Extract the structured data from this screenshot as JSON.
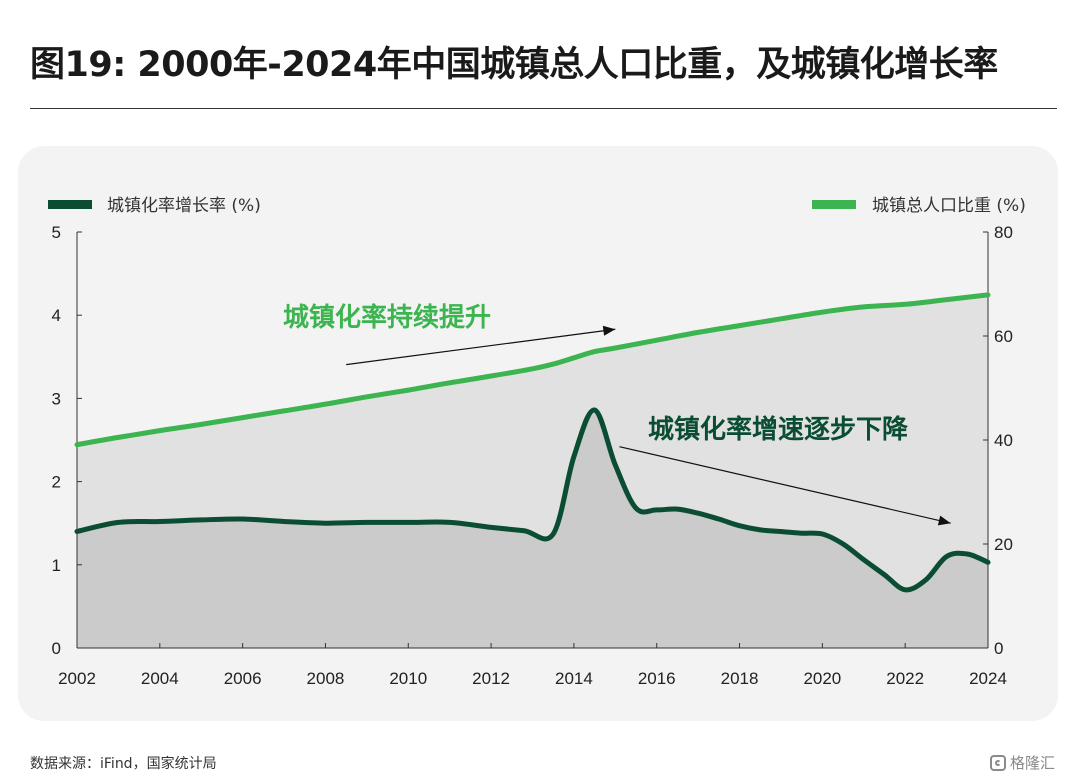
{
  "title": "图19: 2000年-2024年中国城镇总人口比重，及城镇化增长率",
  "source": "数据来源：iFind，国家统计局",
  "watermark": "格隆汇",
  "colors": {
    "growth_line": "#0a4d33",
    "share_line": "#3cb44f",
    "share_area": "#e1e1e1",
    "growth_area": "#cbcbcb",
    "annotation_up": "#3cb44f",
    "annotation_down": "#0a4d33"
  },
  "chart_data": {
    "type": "line",
    "legend": [
      {
        "name": "城镇化率增长率 (%)",
        "position": "top-left",
        "axis": "left"
      },
      {
        "name": "城镇总人口比重 (%)",
        "position": "top-right",
        "axis": "right"
      }
    ],
    "x_ticks": [
      "2002",
      "2004",
      "2006",
      "2008",
      "2010",
      "2012",
      "2014",
      "2016",
      "2018",
      "2020",
      "2022",
      "2024"
    ],
    "xlim": [
      2002,
      2024
    ],
    "y_left": {
      "lim": [
        0,
        5
      ],
      "ticks": [
        "0",
        "1",
        "2",
        "3",
        "4",
        "5"
      ]
    },
    "y_right": {
      "lim": [
        0,
        80
      ],
      "ticks": [
        "0",
        "20",
        "40",
        "60",
        "80"
      ]
    },
    "series": [
      {
        "name": "城镇化率增长率 (%)",
        "axis": "left",
        "x": [
          2002,
          2003,
          2004,
          2005,
          2006,
          2007,
          2008,
          2009,
          2010,
          2011,
          2012,
          2012.8,
          2013.5,
          2014,
          2014.5,
          2015,
          2015.5,
          2016,
          2016.5,
          2017,
          2017.5,
          2018,
          2018.5,
          2019,
          2019.5,
          2020,
          2020.5,
          2021,
          2021.5,
          2022,
          2022.5,
          2023,
          2023.5,
          2024
        ],
        "values": [
          1.4,
          1.51,
          1.52,
          1.54,
          1.55,
          1.52,
          1.5,
          1.51,
          1.51,
          1.51,
          1.45,
          1.41,
          1.37,
          2.3,
          2.86,
          2.2,
          1.68,
          1.66,
          1.67,
          1.62,
          1.55,
          1.47,
          1.42,
          1.4,
          1.38,
          1.37,
          1.25,
          1.06,
          0.88,
          0.7,
          0.82,
          1.1,
          1.13,
          1.03
        ]
      },
      {
        "name": "城镇总人口比重 (%)",
        "axis": "right",
        "x": [
          2002,
          2003,
          2004,
          2005,
          2006,
          2007,
          2008,
          2009,
          2010,
          2011,
          2012,
          2013,
          2013.5,
          2014,
          2014.5,
          2015,
          2016,
          2017,
          2018,
          2019,
          2020,
          2021,
          2022,
          2023,
          2024
        ],
        "values": [
          39.1,
          40.5,
          41.8,
          43.0,
          44.3,
          45.6,
          46.9,
          48.3,
          49.6,
          51.0,
          52.3,
          53.7,
          54.6,
          55.8,
          57.0,
          57.7,
          59.2,
          60.7,
          62.0,
          63.3,
          64.6,
          65.6,
          66.1,
          67.0,
          67.9
        ]
      }
    ],
    "annotations": [
      {
        "text": "城镇化率持续提升",
        "series": "城镇总人口比重 (%)",
        "arrow_from": [
          2008.5,
          54.5
        ],
        "arrow_to": [
          2015.0,
          61.3
        ]
      },
      {
        "text": "城镇化率增速逐步下降",
        "series": "城镇化率增长率 (%)",
        "arrow_from": [
          2015.1,
          2.42
        ],
        "arrow_to": [
          2023.1,
          1.5
        ]
      }
    ]
  }
}
